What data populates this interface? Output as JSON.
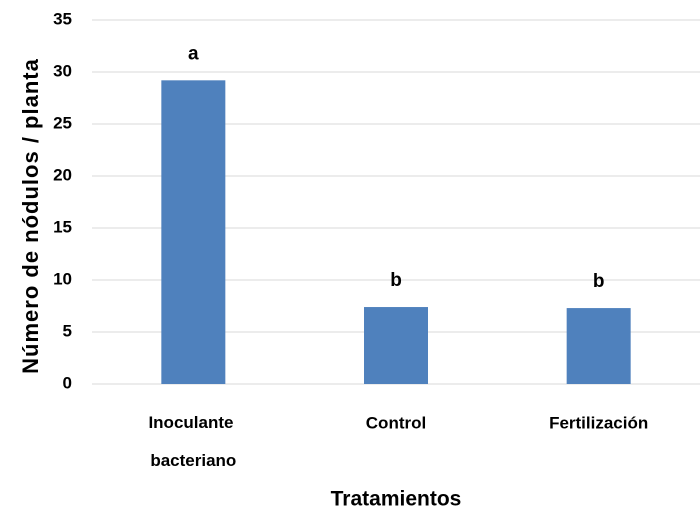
{
  "chart_data": {
    "type": "bar",
    "categories": [
      "Inoculante bacteriano",
      "Control",
      "Fertilización"
    ],
    "values": [
      29.2,
      7.4,
      7.3
    ],
    "annotations": [
      "a",
      "b",
      "b"
    ],
    "color": "#4f81bd",
    "ylabel": "Número de nódulos / planta",
    "xlabel": "Tratamientos",
    "ylim": [
      0,
      35
    ],
    "yticks": [
      0,
      5,
      10,
      15,
      20,
      25,
      30,
      35
    ],
    "grid": true
  }
}
